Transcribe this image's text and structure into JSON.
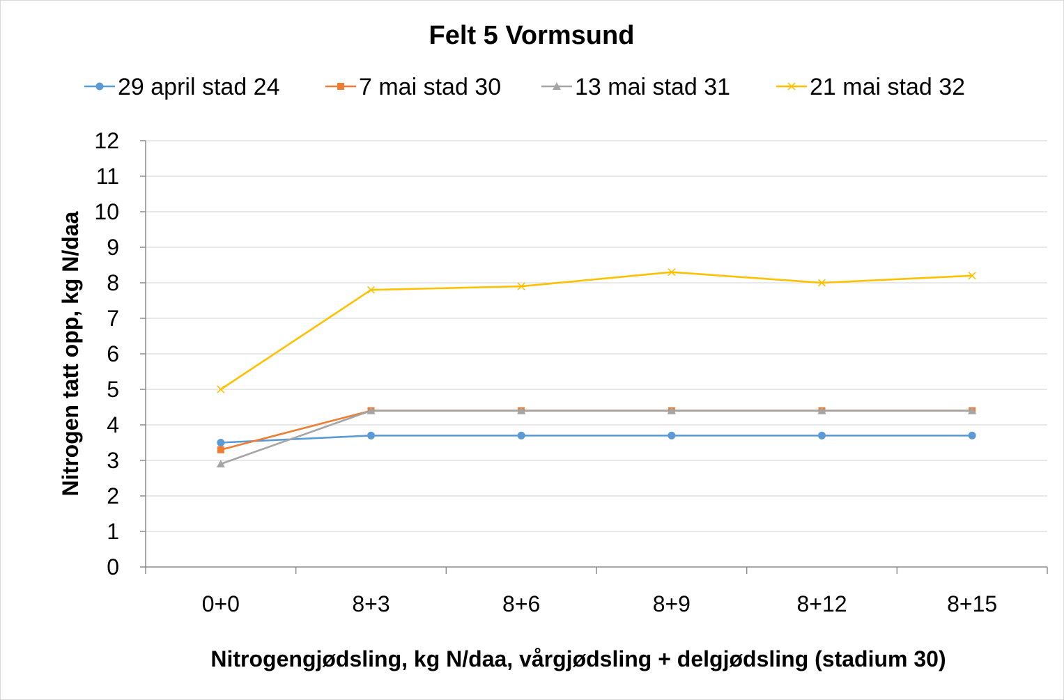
{
  "chart_data": {
    "type": "line",
    "title": "Felt 5 Vormsund",
    "xlabel": "Nitrogengjødsling, kg N/daa, vårgjødsling + delgjødsling (stadium 30)",
    "ylabel": "Nitrogen tatt opp, kg N/daa",
    "categories": [
      "0+0",
      "8+3",
      "8+6",
      "8+9",
      "8+12",
      "8+15"
    ],
    "ylim": [
      0,
      12
    ],
    "yticks": [
      0,
      1,
      2,
      3,
      4,
      5,
      6,
      7,
      8,
      9,
      10,
      11,
      12
    ],
    "grid": true,
    "legend_position": "top",
    "series": [
      {
        "name": "29 april stad 24",
        "color": "#5B9BD5",
        "marker": "circle",
        "values": [
          3.5,
          3.7,
          3.7,
          3.7,
          3.7,
          3.7
        ]
      },
      {
        "name": "7 mai stad 30",
        "color": "#ED7D31",
        "marker": "square",
        "values": [
          3.3,
          4.4,
          4.4,
          4.4,
          4.4,
          4.4
        ]
      },
      {
        "name": "13 mai stad 31",
        "color": "#A5A5A5",
        "marker": "triangle",
        "values": [
          2.9,
          4.4,
          4.4,
          4.4,
          4.4,
          4.4
        ]
      },
      {
        "name": "21 mai stad 32",
        "color": "#FFC000",
        "marker": "x",
        "values": [
          5.0,
          7.8,
          7.9,
          8.3,
          8.0,
          8.2
        ]
      }
    ]
  }
}
